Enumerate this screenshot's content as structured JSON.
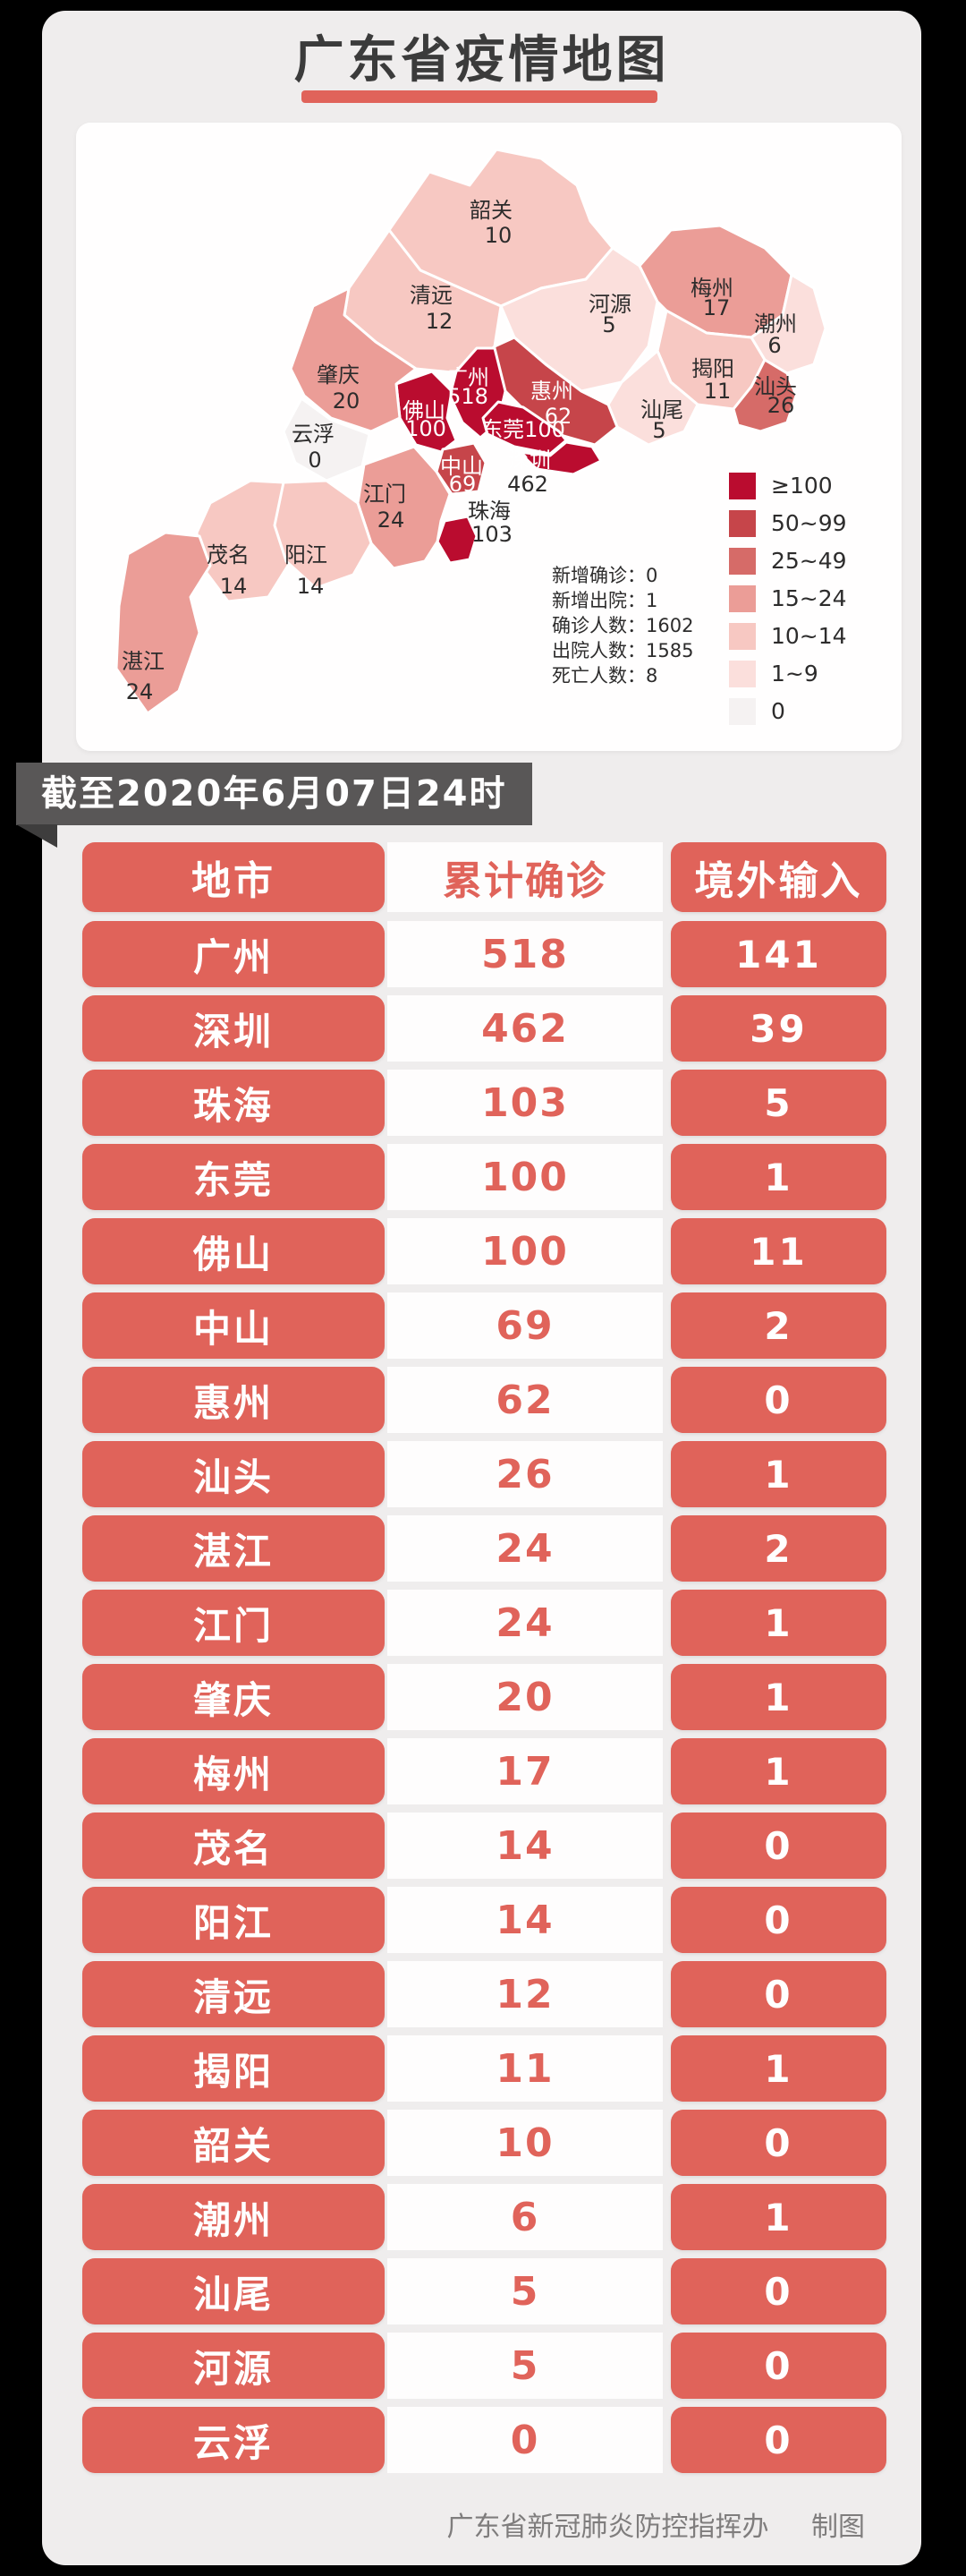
{
  "page": {
    "title": "广东省疫情地图"
  },
  "ribbon": {
    "text": "截至2020年6月07日24时"
  },
  "map": {
    "regions": [
      {
        "id": "shaoguan",
        "name": "韶关",
        "value": "10",
        "color": "#f7c8c2",
        "name_color": "#2d2c2c",
        "value_color": "#2d2c2c"
      },
      {
        "id": "qingyuan",
        "name": "清远",
        "value": "12",
        "color": "#f7c8c2",
        "name_color": "#2d2c2c",
        "value_color": "#2d2c2c"
      },
      {
        "id": "heyuan",
        "name": "河源",
        "value": "5",
        "color": "#fbdfdc",
        "name_color": "#2d2c2c",
        "value_color": "#2d2c2c"
      },
      {
        "id": "meizhou",
        "name": "梅州",
        "value": "17",
        "color": "#eb9d97",
        "name_color": "#2d2c2c",
        "value_color": "#2d2c2c"
      },
      {
        "id": "chaozhou",
        "name": "潮州",
        "value": "6",
        "color": "#fbdfdc",
        "name_color": "#2d2c2c",
        "value_color": "#2d2c2c"
      },
      {
        "id": "jieyang",
        "name": "揭阳",
        "value": "11",
        "color": "#f7c8c2",
        "name_color": "#2d2c2c",
        "value_color": "#2d2c2c"
      },
      {
        "id": "shantou",
        "name": "汕头",
        "value": "26",
        "color": "#d66b68",
        "name_color": "#2d2c2c",
        "value_color": "#2d2c2c"
      },
      {
        "id": "shanwei",
        "name": "汕尾",
        "value": "5",
        "color": "#fbdfdc",
        "name_color": "#2d2c2c",
        "value_color": "#2d2c2c"
      },
      {
        "id": "huizhou",
        "name": "惠州",
        "value": "62",
        "color": "#c6454a",
        "name_color": "#ffffff",
        "value_color": "#ffffff"
      },
      {
        "id": "dongguan",
        "name": "东莞",
        "value": "100",
        "color": "#ba0c2f",
        "name_color": "#ffffff",
        "value_color": "#ffffff",
        "single_line": true
      },
      {
        "id": "shenzhen",
        "name": "深圳",
        "value": "462",
        "color": "#ba0c2f",
        "name_color": "#ffffff",
        "value_color": "#2d2c2c"
      },
      {
        "id": "guangzhou",
        "name": "广州",
        "value": "518",
        "color": "#ba0c2f",
        "name_color": "#ffffff",
        "value_color": "#ffffff"
      },
      {
        "id": "foshan",
        "name": "佛山",
        "value": "100",
        "color": "#ba0c2f",
        "name_color": "#ffffff",
        "value_color": "#ffffff"
      },
      {
        "id": "zhongshan",
        "name": "中山",
        "value": "69",
        "color": "#c6454a",
        "name_color": "#ffffff",
        "value_color": "#ffffff"
      },
      {
        "id": "zhuhai",
        "name": "珠海",
        "value": "103",
        "color": "#ba0c2f",
        "name_color": "#2d2c2c",
        "value_color": "#2d2c2c"
      },
      {
        "id": "jiangmen",
        "name": "江门",
        "value": "24",
        "color": "#eb9d97",
        "name_color": "#2d2c2c",
        "value_color": "#2d2c2c"
      },
      {
        "id": "zhaoqing",
        "name": "肇庆",
        "value": "20",
        "color": "#eb9d97",
        "name_color": "#2d2c2c",
        "value_color": "#2d2c2c"
      },
      {
        "id": "yunfu",
        "name": "云浮",
        "value": "0",
        "color": "#f5f2f2",
        "name_color": "#2d2c2c",
        "value_color": "#2d2c2c"
      },
      {
        "id": "maoming",
        "name": "茂名",
        "value": "14",
        "color": "#f7c8c2",
        "name_color": "#2d2c2c",
        "value_color": "#2d2c2c"
      },
      {
        "id": "yangjiang",
        "name": "阳江",
        "value": "14",
        "color": "#f7c8c2",
        "name_color": "#2d2c2c",
        "value_color": "#2d2c2c"
      },
      {
        "id": "zhanjiang",
        "name": "湛江",
        "value": "24",
        "color": "#eb9d97",
        "name_color": "#2d2c2c",
        "value_color": "#2d2c2c"
      }
    ],
    "legend": [
      {
        "label": "≥100",
        "color": "#ba0c2f"
      },
      {
        "label": "50~99",
        "color": "#c6454a"
      },
      {
        "label": "25~49",
        "color": "#d66b68"
      },
      {
        "label": "15~24",
        "color": "#eb9d97"
      },
      {
        "label": "10~14",
        "color": "#f7c8c2"
      },
      {
        "label": "1~9",
        "color": "#fbdfdc"
      },
      {
        "label": "0",
        "color": "#f5f2f2"
      }
    ],
    "stats": [
      {
        "label": "新增确诊",
        "value": "0"
      },
      {
        "label": "新增出院",
        "value": "1"
      },
      {
        "label": "确诊人数",
        "value": "1602"
      },
      {
        "label": "出院人数",
        "value": "1585"
      },
      {
        "label": "死亡人数",
        "value": "8"
      }
    ]
  },
  "table": {
    "headers": [
      "地市",
      "累计确诊",
      "境外输入"
    ],
    "rows": [
      [
        "广州",
        "518",
        "141"
      ],
      [
        "深圳",
        "462",
        "39"
      ],
      [
        "珠海",
        "103",
        "5"
      ],
      [
        "东莞",
        "100",
        "1"
      ],
      [
        "佛山",
        "100",
        "11"
      ],
      [
        "中山",
        "69",
        "2"
      ],
      [
        "惠州",
        "62",
        "0"
      ],
      [
        "汕头",
        "26",
        "1"
      ],
      [
        "湛江",
        "24",
        "2"
      ],
      [
        "江门",
        "24",
        "1"
      ],
      [
        "肇庆",
        "20",
        "1"
      ],
      [
        "梅州",
        "17",
        "1"
      ],
      [
        "茂名",
        "14",
        "0"
      ],
      [
        "阳江",
        "14",
        "0"
      ],
      [
        "清远",
        "12",
        "0"
      ],
      [
        "揭阳",
        "11",
        "1"
      ],
      [
        "韶关",
        "10",
        "0"
      ],
      [
        "潮州",
        "6",
        "1"
      ],
      [
        "汕尾",
        "5",
        "0"
      ],
      [
        "河源",
        "5",
        "0"
      ],
      [
        "云浮",
        "0",
        "0"
      ]
    ]
  },
  "footer": {
    "credit": "广东省新冠肺炎防控指挥办",
    "maker": "制图"
  },
  "chart_data": [
    {
      "type": "heatmap",
      "subtype": "choropleth-map",
      "title": "广东省疫情地图",
      "as_of": "截至2020年6月07日24时",
      "legend_bins": [
        "≥100",
        "50~99",
        "25~49",
        "15~24",
        "10~14",
        "1~9",
        "0"
      ],
      "legend_position": "right",
      "regions": [
        {
          "name": "韶关",
          "value": 10
        },
        {
          "name": "清远",
          "value": 12
        },
        {
          "name": "河源",
          "value": 5
        },
        {
          "name": "梅州",
          "value": 17
        },
        {
          "name": "潮州",
          "value": 6
        },
        {
          "name": "揭阳",
          "value": 11
        },
        {
          "name": "汕头",
          "value": 26
        },
        {
          "name": "汕尾",
          "value": 5
        },
        {
          "name": "惠州",
          "value": 62
        },
        {
          "name": "东莞",
          "value": 100
        },
        {
          "name": "深圳",
          "value": 462
        },
        {
          "name": "广州",
          "value": 518
        },
        {
          "name": "佛山",
          "value": 100
        },
        {
          "name": "中山",
          "value": 69
        },
        {
          "name": "珠海",
          "value": 103
        },
        {
          "name": "江门",
          "value": 24
        },
        {
          "name": "肇庆",
          "value": 20
        },
        {
          "name": "云浮",
          "value": 0
        },
        {
          "name": "茂名",
          "value": 14
        },
        {
          "name": "阳江",
          "value": 14
        },
        {
          "name": "湛江",
          "value": 24
        }
      ],
      "stats": {
        "新增确诊": 0,
        "新增出院": 1,
        "确诊人数": 1602,
        "出院人数": 1585,
        "死亡人数": 8
      }
    },
    {
      "type": "table",
      "columns": [
        "地市",
        "累计确诊",
        "境外输入"
      ],
      "rows": [
        [
          "广州",
          518,
          141
        ],
        [
          "深圳",
          462,
          39
        ],
        [
          "珠海",
          103,
          5
        ],
        [
          "东莞",
          100,
          1
        ],
        [
          "佛山",
          100,
          11
        ],
        [
          "中山",
          69,
          2
        ],
        [
          "惠州",
          62,
          0
        ],
        [
          "汕头",
          26,
          1
        ],
        [
          "湛江",
          24,
          2
        ],
        [
          "江门",
          24,
          1
        ],
        [
          "肇庆",
          20,
          1
        ],
        [
          "梅州",
          17,
          1
        ],
        [
          "茂名",
          14,
          0
        ],
        [
          "阳江",
          14,
          0
        ],
        [
          "清远",
          12,
          0
        ],
        [
          "揭阳",
          11,
          1
        ],
        [
          "韶关",
          10,
          0
        ],
        [
          "潮州",
          6,
          1
        ],
        [
          "汕尾",
          5,
          0
        ],
        [
          "河源",
          5,
          0
        ],
        [
          "云浮",
          0,
          0
        ]
      ]
    }
  ]
}
